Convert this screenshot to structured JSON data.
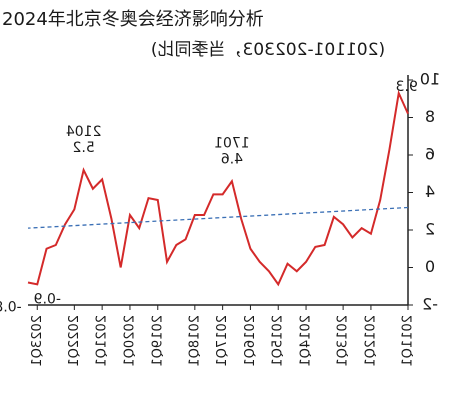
{
  "chart_data": {
    "type": "line",
    "title": "2024年北京冬奥会经济影响分析",
    "subtitle": "(201101-202303，当季同比)",
    "categories": [
      "2011Q1",
      null,
      null,
      null,
      "2012Q1",
      null,
      null,
      "2013Q1",
      null,
      null,
      null,
      "2014Q1",
      null,
      null,
      "2015Q1",
      null,
      null,
      "2016Q1",
      null,
      null,
      "2017Q1",
      null,
      null,
      "2018Q1",
      null,
      null,
      null,
      "2019Q1",
      null,
      null,
      "2020Q1",
      null,
      null,
      "2021Q1",
      null,
      null,
      "2022Q1",
      null,
      null,
      null,
      "2023Q1",
      null
    ],
    "series": [
      {
        "name": "当季同比",
        "color": "#d42a2a",
        "values": [
          8.2,
          9.3,
          6.3,
          3.6,
          1.8,
          2.1,
          1.6,
          2.3,
          2.7,
          1.2,
          1.1,
          0.3,
          -0.2,
          0.2,
          -0.9,
          -0.2,
          0.3,
          1.0,
          2.6,
          4.6,
          3.9,
          3.9,
          2.8,
          2.8,
          1.5,
          1.2,
          0.3,
          3.6,
          3.7,
          2.1,
          2.8,
          0,
          2.6,
          4.7,
          4.2,
          5.2,
          3.1,
          2.3,
          1.2,
          1.0,
          -0.9,
          -0.8
        ]
      }
    ],
    "trend": {
      "color": "#3a6fb5",
      "values": [
        3.2,
        2.1
      ]
    },
    "annotations": [
      {
        "index": 1,
        "text": "9.3"
      },
      {
        "index": 19,
        "text": "1701",
        "text2": "4.6"
      },
      {
        "index": 35,
        "text": "2104",
        "text2": "5.2"
      },
      {
        "index": 40,
        "text": "-0.9"
      },
      {
        "index": 41,
        "text": "-0.8"
      }
    ],
    "ylim": [
      -2,
      10
    ],
    "yticks": [
      -2,
      0,
      2,
      4,
      6,
      8,
      10
    ]
  }
}
